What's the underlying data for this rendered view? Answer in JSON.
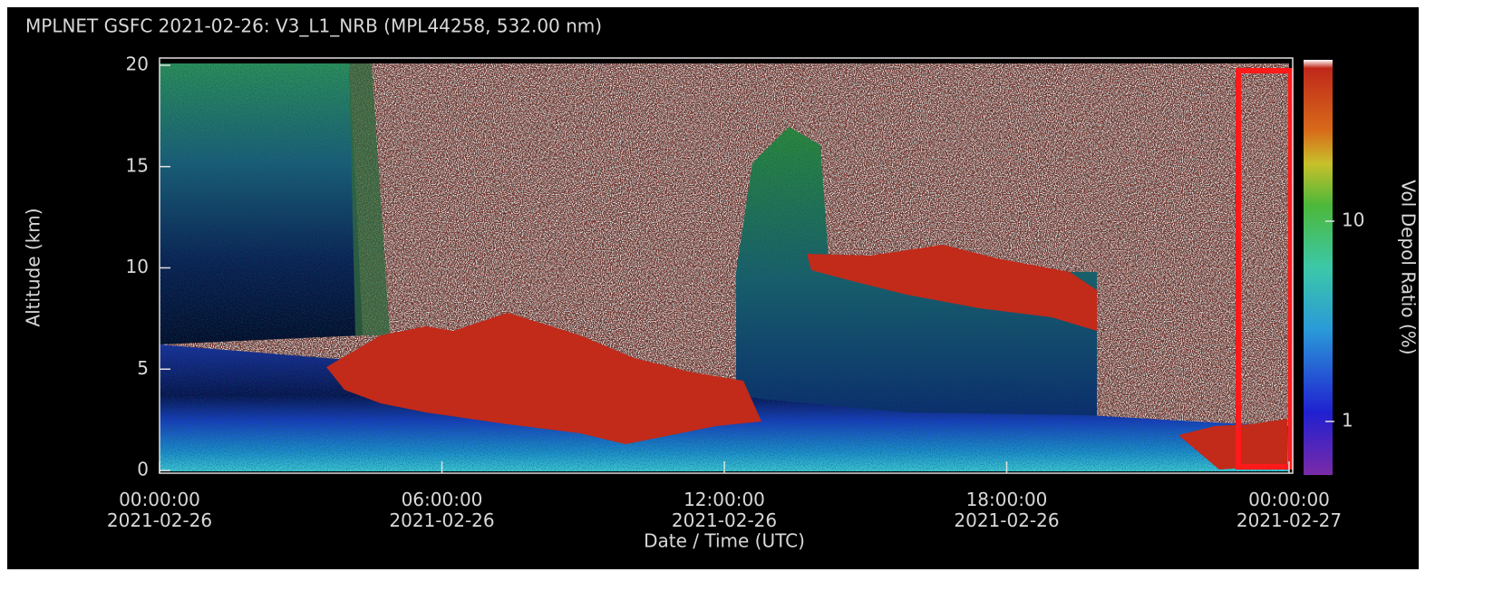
{
  "chart_data": {
    "type": "heatmap",
    "title": "MPLNET GSFC 2021-02-26:  V3_L1_NRB  (MPL44258, 532.00 nm)",
    "xlabel": "Date / Time (UTC)",
    "ylabel": "Altitude (km)",
    "xlim": [
      "2021-02-26T00:00:00Z",
      "2021-02-27T00:00:00Z"
    ],
    "xticks": [
      {
        "value": "2021-02-26T00:00:00Z",
        "label": "00:00:00\n2021-02-26"
      },
      {
        "value": "2021-02-26T06:00:00Z",
        "label": "06:00:00\n2021-02-26"
      },
      {
        "value": "2021-02-26T12:00:00Z",
        "label": "12:00:00\n2021-02-26"
      },
      {
        "value": "2021-02-26T18:00:00Z",
        "label": "18:00:00\n2021-02-26"
      },
      {
        "value": "2021-02-27T00:00:00Z",
        "label": "00:00:00\n2021-02-27"
      }
    ],
    "ylim": [
      0,
      20
    ],
    "yticks": [
      0,
      5,
      10,
      15,
      20
    ],
    "colorbar": {
      "label": "Vol Depol Ratio (%)",
      "log_scale": true,
      "clim": [
        0.54,
        64
      ],
      "ticks": [
        1,
        10
      ]
    }
  }
}
